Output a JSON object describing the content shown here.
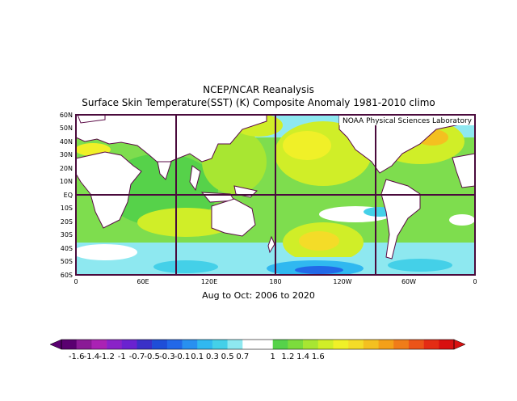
{
  "title": "NCEP/NCAR Reanalysis",
  "subtitle": "Surface Skin Temperature(SST) (K) Composite Anomaly 1981-2010 climo",
  "credit": "NOAA Physical Sciences Laboratory",
  "period": "Aug to Oct: 2006 to 2020",
  "lat_labels": [
    "60N",
    "50N",
    "40N",
    "30N",
    "20N",
    "10N",
    "EQ",
    "10S",
    "20S",
    "30S",
    "40S",
    "50S",
    "60S"
  ],
  "lon_labels": [
    "0",
    "60E",
    "120E",
    "180",
    "120W",
    "60W",
    "0"
  ],
  "colorbar": {
    "labels": [
      "-1.6",
      "-1.4",
      "-1.2",
      "-1",
      "-0.7",
      "-0.5",
      "-0.3",
      "-0.1",
      "0.1",
      "0.3",
      "0.5",
      "0.7",
      "1",
      "1.2",
      "1.4",
      "1.6"
    ],
    "colors": [
      "#5a0070",
      "#8a1a96",
      "#aa22b4",
      "#8a22c8",
      "#6a22d0",
      "#3a30c8",
      "#1e4ed8",
      "#2268e8",
      "#2890f0",
      "#30b8f0",
      "#44d0e8",
      "#8ee8f0",
      "#ffffff",
      "#ffffff",
      "#56d24a",
      "#7cdc3c",
      "#a8e632",
      "#d0ee28",
      "#f0f028",
      "#f4dc28",
      "#f4c020",
      "#f4a018",
      "#f07c18",
      "#ec5418",
      "#e42c14",
      "#d81010"
    ]
  }
}
